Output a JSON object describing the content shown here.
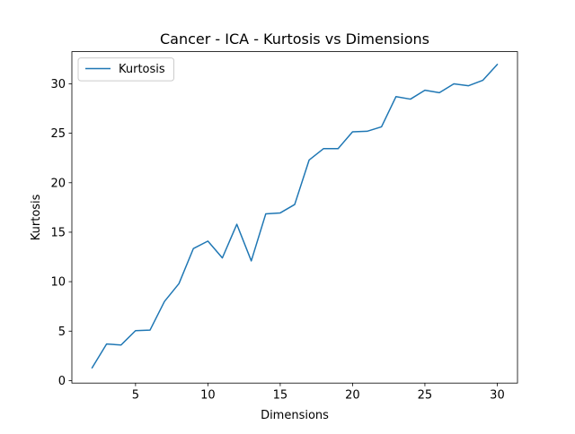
{
  "chart_data": {
    "type": "line",
    "title": "Cancer - ICA - Kurtosis vs Dimensions",
    "xlabel": "Dimensions",
    "ylabel": "Kurtosis",
    "xlim": [
      0.6,
      31.4
    ],
    "ylim": [
      -0.25,
      33.25
    ],
    "xticks": [
      5,
      10,
      15,
      20,
      25,
      30
    ],
    "yticks": [
      0,
      5,
      10,
      15,
      20,
      25,
      30
    ],
    "grid": false,
    "legend_position": "upper-left",
    "series": [
      {
        "name": "Kurtosis",
        "color": "#1f77b4",
        "x": [
          2,
          3,
          4,
          5,
          6,
          7,
          8,
          9,
          10,
          11,
          12,
          13,
          14,
          15,
          16,
          17,
          18,
          19,
          20,
          21,
          22,
          23,
          24,
          25,
          26,
          27,
          28,
          29,
          30
        ],
        "y": [
          1.3,
          3.7,
          3.6,
          5.05,
          5.1,
          8.0,
          9.8,
          13.35,
          14.1,
          12.4,
          15.8,
          12.1,
          16.85,
          16.95,
          17.8,
          22.3,
          23.45,
          23.45,
          25.15,
          25.2,
          25.65,
          28.7,
          28.45,
          29.35,
          29.1,
          30.0,
          29.8,
          30.35,
          31.95
        ]
      }
    ]
  }
}
